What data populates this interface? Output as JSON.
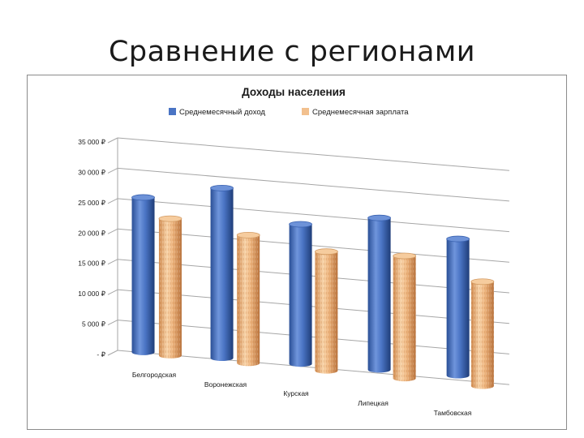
{
  "slide": {
    "title": "Сравнение с регионами"
  },
  "colors": {
    "series1": "#4a74c4",
    "series2": "#f2c08e",
    "grid": "#a6a6a6",
    "text": "#1a1a1a"
  },
  "chart_data": {
    "type": "bar",
    "title": "Доходы населения",
    "xlabel": "",
    "ylabel": "",
    "ylim": [
      0,
      35000
    ],
    "yticks": [
      "- ₽",
      "5 000 ₽",
      "10 000 ₽",
      "15 000 ₽",
      "20 000 ₽",
      "25 000 ₽",
      "30 000 ₽",
      "35 000 ₽"
    ],
    "grid": true,
    "legend_position": "top",
    "categories": [
      "Белгородская",
      "Воронежская",
      "Курская",
      "Липецкая",
      "Тамбовская"
    ],
    "series": [
      {
        "name": "Среднемесячный доход",
        "values": [
          25500,
          28000,
          23000,
          25000,
          22500
        ]
      },
      {
        "name": "Среднемесячная зарплата",
        "values": [
          22500,
          21000,
          19500,
          20000,
          17000
        ]
      }
    ]
  }
}
